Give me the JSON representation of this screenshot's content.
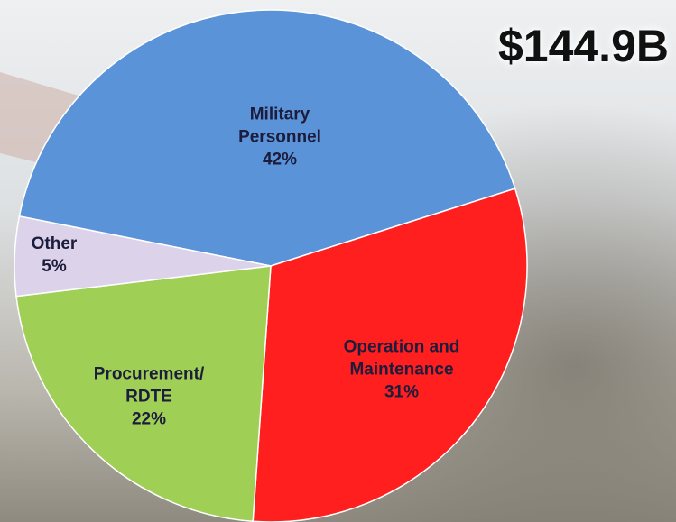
{
  "chart_data": {
    "type": "pie",
    "title": "$144.9B",
    "categories": [
      "Military Personnel",
      "Operation and Maintenance",
      "Procurement/ RDTE",
      "Other"
    ],
    "values": [
      42,
      31,
      22,
      5
    ],
    "value_labels": [
      "42%",
      "31%",
      "22%",
      "5%"
    ],
    "colors": [
      "#5b93d9",
      "#ff1f1f",
      "#9fcf55",
      "#dcd3ea"
    ]
  }
}
